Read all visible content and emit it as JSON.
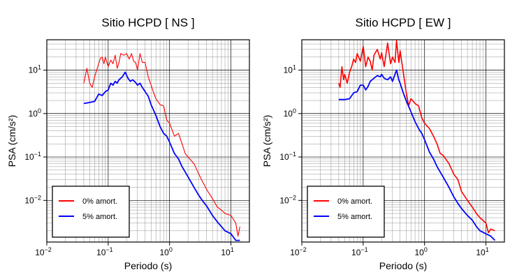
{
  "chart_data": [
    {
      "type": "line",
      "title": "Sitio HCPD [ NS ]",
      "xlabel": "Periodo (s)",
      "ylabel": "PSA (cm/s²)",
      "x_scale": "log",
      "y_scale": "log",
      "xlim": [
        0.01,
        20
      ],
      "ylim": [
        0.0011,
        50
      ],
      "grid": true,
      "legend_position": "bottom-left",
      "x_ticks": [
        {
          "value": 0.01,
          "base": "10",
          "exp": "−2"
        },
        {
          "value": 0.1,
          "base": "10",
          "exp": "−1"
        },
        {
          "value": 1,
          "base": "10",
          "exp": "0"
        },
        {
          "value": 10,
          "base": "10",
          "exp": "1"
        }
      ],
      "y_ticks": [
        {
          "value": 0.01,
          "base": "10",
          "exp": "−2"
        },
        {
          "value": 0.1,
          "base": "10",
          "exp": "−1"
        },
        {
          "value": 1,
          "base": "10",
          "exp": "0"
        },
        {
          "value": 10,
          "base": "10",
          "exp": "1"
        }
      ],
      "series": [
        {
          "name": "0% amort.",
          "color": "#ff0000",
          "x": [
            0.04,
            0.042,
            0.045,
            0.05,
            0.055,
            0.06,
            0.065,
            0.07,
            0.075,
            0.08,
            0.085,
            0.09,
            0.1,
            0.11,
            0.12,
            0.13,
            0.14,
            0.15,
            0.16,
            0.18,
            0.2,
            0.22,
            0.24,
            0.26,
            0.28,
            0.3,
            0.33,
            0.36,
            0.4,
            0.45,
            0.5,
            0.55,
            0.6,
            0.7,
            0.8,
            0.9,
            1.0,
            1.2,
            1.4,
            1.6,
            1.8,
            2.0,
            2.5,
            3.0,
            3.5,
            4.0,
            5.0,
            6.0,
            7.0,
            8.0,
            10.0,
            12.0,
            13.0,
            14.0
          ],
          "y": [
            5,
            7,
            11,
            5,
            4,
            7,
            10,
            14,
            19,
            20,
            14,
            20,
            12,
            17,
            14,
            22,
            11,
            15,
            24,
            22,
            24,
            18,
            24,
            16,
            15,
            10,
            24,
            15,
            15,
            7,
            4.5,
            3,
            2.2,
            1.6,
            1.5,
            0.7,
            0.6,
            0.3,
            0.35,
            0.2,
            0.12,
            0.1,
            0.07,
            0.04,
            0.026,
            0.018,
            0.011,
            0.007,
            0.006,
            0.005,
            0.0045,
            0.003,
            0.0015,
            0.0025
          ]
        },
        {
          "name": "5% amort.",
          "color": "#0000ff",
          "x": [
            0.04,
            0.05,
            0.06,
            0.07,
            0.08,
            0.09,
            0.1,
            0.11,
            0.12,
            0.13,
            0.14,
            0.15,
            0.17,
            0.19,
            0.2,
            0.21,
            0.23,
            0.25,
            0.28,
            0.3,
            0.33,
            0.36,
            0.4,
            0.45,
            0.5,
            0.6,
            0.7,
            0.8,
            0.9,
            1.0,
            1.2,
            1.4,
            1.6,
            1.8,
            2.0,
            2.5,
            3.0,
            3.5,
            4.0,
            5.0,
            6.0,
            7.0,
            8.0,
            10.0,
            12.0,
            14.0
          ],
          "y": [
            1.7,
            1.8,
            1.9,
            2.8,
            2.6,
            3.2,
            3.5,
            5.0,
            4.5,
            5.5,
            5.0,
            6.0,
            7.0,
            9.0,
            7.5,
            6.5,
            5.5,
            6.0,
            5.2,
            4.5,
            5.0,
            4.0,
            3.2,
            2.5,
            1.6,
            0.9,
            0.5,
            0.35,
            0.3,
            0.22,
            0.12,
            0.09,
            0.06,
            0.045,
            0.035,
            0.02,
            0.013,
            0.0095,
            0.0075,
            0.0045,
            0.0032,
            0.0025,
            0.002,
            0.0017,
            0.0012,
            0.0012
          ]
        }
      ]
    },
    {
      "type": "line",
      "title": "Sitio HCPD [ EW ]",
      "xlabel": "Periodo (s)",
      "ylabel": "PSA (cm/s²)",
      "x_scale": "log",
      "y_scale": "log",
      "xlim": [
        0.01,
        20
      ],
      "ylim": [
        0.0011,
        50
      ],
      "grid": true,
      "legend_position": "bottom-left",
      "x_ticks": [
        {
          "value": 0.01,
          "base": "10",
          "exp": "−2"
        },
        {
          "value": 0.1,
          "base": "10",
          "exp": "−1"
        },
        {
          "value": 1,
          "base": "10",
          "exp": "0"
        },
        {
          "value": 10,
          "base": "10",
          "exp": "1"
        }
      ],
      "y_ticks": [
        {
          "value": 0.01,
          "base": "10",
          "exp": "−2"
        },
        {
          "value": 0.1,
          "base": "10",
          "exp": "−1"
        },
        {
          "value": 1,
          "base": "10",
          "exp": "0"
        },
        {
          "value": 10,
          "base": "10",
          "exp": "1"
        }
      ],
      "series": [
        {
          "name": "0% amort.",
          "color": "#ff0000",
          "x": [
            0.04,
            0.042,
            0.045,
            0.048,
            0.05,
            0.055,
            0.06,
            0.065,
            0.07,
            0.075,
            0.08,
            0.09,
            0.1,
            0.11,
            0.12,
            0.13,
            0.14,
            0.15,
            0.17,
            0.19,
            0.2,
            0.22,
            0.25,
            0.28,
            0.3,
            0.33,
            0.35,
            0.38,
            0.4,
            0.45,
            0.5,
            0.55,
            0.6,
            0.7,
            0.8,
            0.9,
            1.0,
            1.2,
            1.4,
            1.6,
            1.8,
            2.0,
            2.5,
            3.0,
            3.5,
            4.0,
            5.0,
            6.0,
            7.0,
            8.0,
            10.0,
            11.0,
            12.0,
            14.0
          ],
          "y": [
            5,
            4,
            12,
            6,
            8,
            5,
            9,
            12,
            18,
            15,
            24,
            16,
            35,
            12,
            20,
            16,
            10,
            22,
            30,
            18,
            25,
            12,
            42,
            14,
            20,
            15,
            48,
            15,
            28,
            9,
            3.2,
            1.5,
            2.2,
            1.7,
            1.5,
            0.8,
            0.6,
            0.45,
            0.3,
            0.2,
            0.12,
            0.11,
            0.07,
            0.04,
            0.03,
            0.016,
            0.01,
            0.007,
            0.005,
            0.004,
            0.003,
            0.0018,
            0.0022,
            0.002
          ]
        },
        {
          "name": "5% amort.",
          "color": "#0000ff",
          "x": [
            0.04,
            0.05,
            0.06,
            0.07,
            0.08,
            0.09,
            0.1,
            0.11,
            0.12,
            0.13,
            0.14,
            0.15,
            0.17,
            0.19,
            0.2,
            0.22,
            0.25,
            0.28,
            0.3,
            0.33,
            0.35,
            0.38,
            0.4,
            0.45,
            0.5,
            0.6,
            0.7,
            0.8,
            0.9,
            1.0,
            1.2,
            1.4,
            1.6,
            1.8,
            2.0,
            2.5,
            3.0,
            3.5,
            4.0,
            5.0,
            6.0,
            7.0,
            8.0,
            10.0,
            12.0,
            14.0
          ],
          "y": [
            2.1,
            2.1,
            2.2,
            3.0,
            3.2,
            4.5,
            4.5,
            3.5,
            4.2,
            5.5,
            6.0,
            6.5,
            7.5,
            7.0,
            8.0,
            6.5,
            6.0,
            7.0,
            5.5,
            8.0,
            10.0,
            6.0,
            5.0,
            3.0,
            2.0,
            1.1,
            0.65,
            0.45,
            0.35,
            0.25,
            0.13,
            0.09,
            0.06,
            0.045,
            0.035,
            0.02,
            0.012,
            0.0085,
            0.0065,
            0.0045,
            0.0035,
            0.0025,
            0.002,
            0.0017,
            0.0015,
            0.0012
          ]
        }
      ]
    }
  ]
}
